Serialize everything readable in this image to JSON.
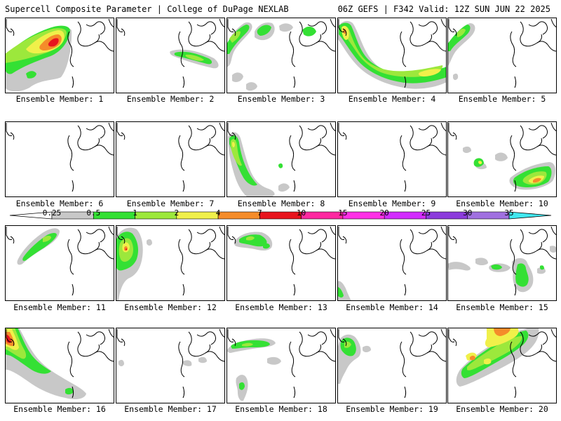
{
  "header": {
    "title": "Supercell Composite Parameter | College of DuPage NEXLAB",
    "run_info": "06Z GEFS | F342 Valid: 12Z SUN JUN 22 2025"
  },
  "colorbar": {
    "labels": [
      "0.25",
      "0.5",
      "1",
      "2",
      "4",
      "7",
      "10",
      "15",
      "20",
      "25",
      "30",
      "35"
    ],
    "colors": [
      "#c8c8c8",
      "#34e034",
      "#9ce83c",
      "#f0f04a",
      "#f58c2a",
      "#e8141e",
      "#ff28a0",
      "#ff30e6",
      "#d22cff",
      "#8c3cdc",
      "#a070e0",
      "#40e8f0"
    ]
  },
  "palette": {
    "gray": "#c8c8c8",
    "green": "#34e034",
    "lightgreen": "#9ce83c",
    "yellow": "#f0f04a",
    "orange": "#f58c2a",
    "red": "#e8141e",
    "outline": "#000000"
  },
  "members": [
    {
      "caption": "Ensemble Member: 1"
    },
    {
      "caption": "Ensemble Member: 2"
    },
    {
      "caption": "Ensemble Member: 3"
    },
    {
      "caption": "Ensemble Member: 4"
    },
    {
      "caption": "Ensemble Member: 5"
    },
    {
      "caption": "Ensemble Member: 6"
    },
    {
      "caption": "Ensemble Member: 7"
    },
    {
      "caption": "Ensemble Member: 8"
    },
    {
      "caption": "Ensemble Member: 9"
    },
    {
      "caption": "Ensemble Member: 10"
    },
    {
      "caption": "Ensemble Member: 11"
    },
    {
      "caption": "Ensemble Member: 12"
    },
    {
      "caption": "Ensemble Member: 13"
    },
    {
      "caption": "Ensemble Member: 14"
    },
    {
      "caption": "Ensemble Member: 15"
    },
    {
      "caption": "Ensemble Member: 16"
    },
    {
      "caption": "Ensemble Member: 17"
    },
    {
      "caption": "Ensemble Member: 18"
    },
    {
      "caption": "Ensemble Member: 19"
    },
    {
      "caption": "Ensemble Member: 20"
    }
  ]
}
